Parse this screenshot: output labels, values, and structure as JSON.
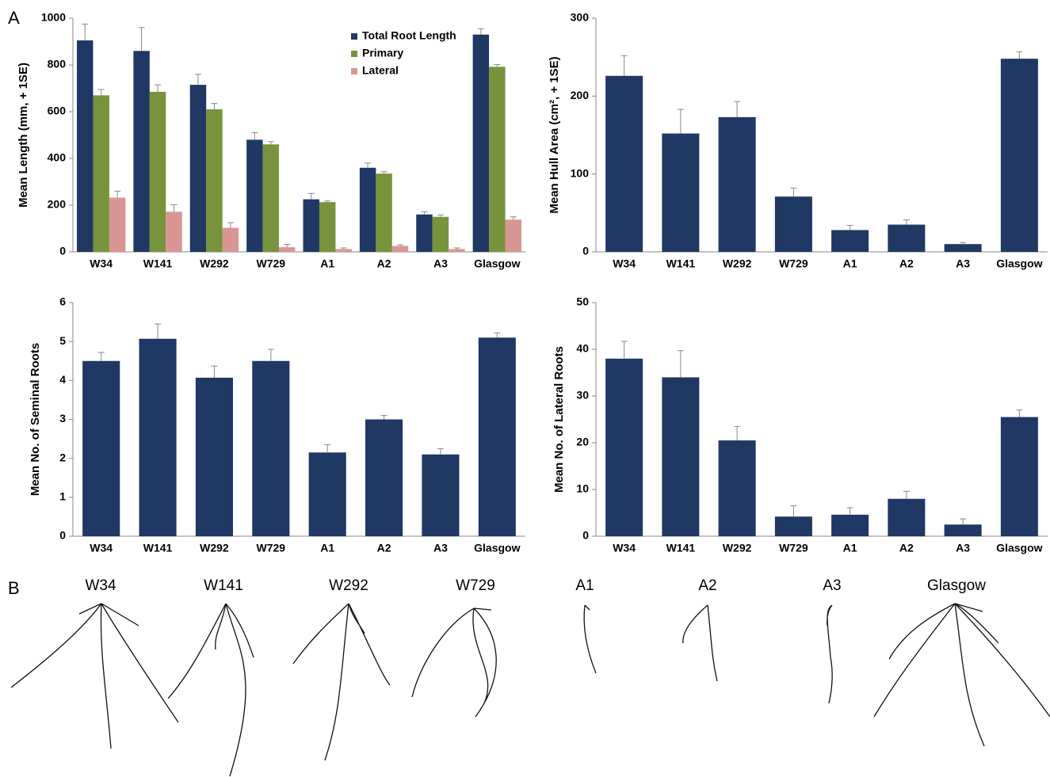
{
  "chart_data": [
    {
      "type": "bar",
      "panel": "A",
      "y_label": "Mean Length (mm, + 1SE)",
      "categories": [
        "W34",
        "W141",
        "W292",
        "W729",
        "A1",
        "A2",
        "A3",
        "Glasgow"
      ],
      "series": [
        {
          "name": "Total Root Length",
          "color": "#1f3864",
          "values": [
            905,
            860,
            715,
            480,
            225,
            360,
            160,
            930
          ],
          "errors": [
            70,
            100,
            45,
            30,
            25,
            20,
            12,
            25
          ]
        },
        {
          "name": "Primary",
          "color": "#77933c",
          "values": [
            670,
            685,
            610,
            460,
            213,
            335,
            150,
            792
          ],
          "errors": [
            25,
            30,
            25,
            12,
            5,
            8,
            8,
            10
          ]
        },
        {
          "name": "Lateral",
          "color": "#d99694",
          "values": [
            232,
            172,
            103,
            20,
            12,
            25,
            12,
            138
          ],
          "errors": [
            28,
            30,
            22,
            12,
            5,
            5,
            5,
            12
          ]
        }
      ],
      "ylim": [
        0,
        1000
      ],
      "yticks": [
        0,
        200,
        400,
        600,
        800,
        1000
      ],
      "legend": "top-right"
    },
    {
      "type": "bar",
      "y_label": "Mean Hull Area (cm², + 1SE)",
      "categories": [
        "W34",
        "W141",
        "W292",
        "W729",
        "A1",
        "A2",
        "A3",
        "Glasgow"
      ],
      "series": [
        {
          "color": "#1f3864",
          "values": [
            226,
            152,
            173,
            71,
            28,
            35,
            10,
            248
          ],
          "errors": [
            26,
            31,
            20,
            11,
            6,
            6,
            2,
            9
          ]
        }
      ],
      "ylim": [
        0,
        300
      ],
      "yticks": [
        0,
        100,
        200,
        300
      ]
    },
    {
      "type": "bar",
      "y_label": "Mean No. of Seminal Roots",
      "categories": [
        "W34",
        "W141",
        "W292",
        "W729",
        "A1",
        "A2",
        "A3",
        "Glasgow"
      ],
      "series": [
        {
          "color": "#1f3864",
          "values": [
            4.5,
            5.07,
            4.07,
            4.5,
            2.15,
            3.0,
            2.1,
            5.1
          ],
          "errors": [
            0.22,
            0.38,
            0.3,
            0.3,
            0.2,
            0.1,
            0.15,
            0.12
          ]
        }
      ],
      "ylim": [
        0,
        6
      ],
      "yticks": [
        0,
        1,
        2,
        3,
        4,
        5,
        6
      ]
    },
    {
      "type": "bar",
      "y_label": "Mean No. of Lateral Roots",
      "categories": [
        "W34",
        "W141",
        "W292",
        "W729",
        "A1",
        "A2",
        "A3",
        "Glasgow"
      ],
      "series": [
        {
          "color": "#1f3864",
          "values": [
            38,
            34,
            20.5,
            4.2,
            4.6,
            8,
            2.5,
            25.5
          ],
          "errors": [
            3.7,
            5.7,
            3,
            2.3,
            1.5,
            1.6,
            1.2,
            1.5
          ]
        }
      ],
      "ylim": [
        0,
        50
      ],
      "yticks": [
        0,
        10,
        20,
        30,
        40,
        50
      ]
    }
  ],
  "panel_b": {
    "label": "B",
    "roots": [
      "W34",
      "W141",
      "W292",
      "W729",
      "A1",
      "A2",
      "A3",
      "Glasgow"
    ]
  }
}
